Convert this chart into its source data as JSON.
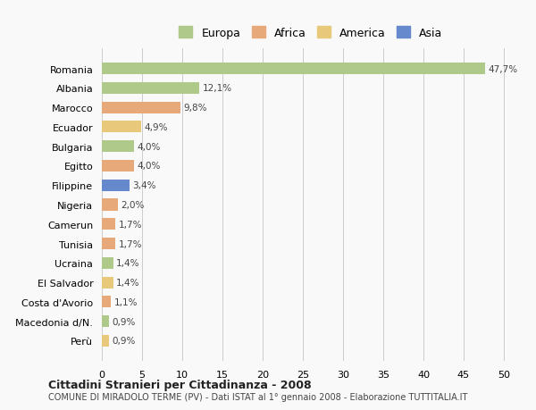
{
  "countries": [
    "Romania",
    "Albania",
    "Marocco",
    "Ecuador",
    "Bulgaria",
    "Egitto",
    "Filippine",
    "Nigeria",
    "Camerun",
    "Tunisia",
    "Ucraina",
    "El Salvador",
    "Costa d'Avorio",
    "Macedonia d/N.",
    "Perù"
  ],
  "values": [
    47.7,
    12.1,
    9.8,
    4.9,
    4.0,
    4.0,
    3.4,
    2.0,
    1.7,
    1.7,
    1.4,
    1.4,
    1.1,
    0.9,
    0.9
  ],
  "labels": [
    "47,7%",
    "12,1%",
    "9,8%",
    "4,9%",
    "4,0%",
    "4,0%",
    "3,4%",
    "2,0%",
    "1,7%",
    "1,7%",
    "1,4%",
    "1,4%",
    "1,1%",
    "0,9%",
    "0,9%"
  ],
  "colors": [
    "#aec98a",
    "#aec98a",
    "#e8a97a",
    "#e8c87a",
    "#aec98a",
    "#e8a97a",
    "#6688cc",
    "#e8a97a",
    "#e8a97a",
    "#e8a97a",
    "#aec98a",
    "#e8c87a",
    "#e8a97a",
    "#aec98a",
    "#e8c87a"
  ],
  "legend": {
    "labels": [
      "Europa",
      "Africa",
      "America",
      "Asia"
    ],
    "colors": [
      "#aec98a",
      "#e8a97a",
      "#e8c87a",
      "#6688cc"
    ]
  },
  "xlim": [
    0,
    52
  ],
  "xticks": [
    0,
    5,
    10,
    15,
    20,
    25,
    30,
    35,
    40,
    45,
    50
  ],
  "title": "Cittadini Stranieri per Cittadinanza - 2008",
  "subtitle": "COMUNE DI MIRADOLO TERME (PV) - Dati ISTAT al 1° gennaio 2008 - Elaborazione TUTTITALIA.IT",
  "bg_color": "#f9f9f9",
  "bar_bg": "#ffffff",
  "grid_color": "#cccccc"
}
